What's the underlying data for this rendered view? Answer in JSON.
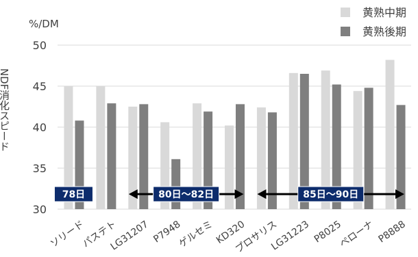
{
  "chart_data": {
    "type": "bar",
    "unit_label": "%/DM",
    "ylabel": "NDF消化スピード",
    "ylim": [
      30,
      50
    ],
    "yticks": [
      30,
      35,
      40,
      45,
      50
    ],
    "grid": true,
    "legend_position": "top-right",
    "categories": [
      "ソリード",
      "パステト",
      "LG31207",
      "P7948",
      "ゲルセミ",
      "KD320",
      "プロサリス",
      "LG31223",
      "P8025",
      "ペローナ",
      "P8888"
    ],
    "series": [
      {
        "name": "黄熟中期",
        "color": "#d9d9d9",
        "values": [
          45.0,
          45.0,
          42.5,
          40.6,
          42.9,
          40.2,
          42.4,
          46.6,
          46.9,
          44.4,
          48.2
        ]
      },
      {
        "name": "黄熟後期",
        "color": "#7f7f7f",
        "values": [
          40.8,
          42.9,
          42.8,
          36.1,
          41.9,
          42.8,
          41.8,
          46.5,
          45.2,
          44.8,
          42.7
        ]
      }
    ],
    "annotations": [
      {
        "label": "78日",
        "start_category": 0,
        "end_category": 0,
        "arrows": false
      },
      {
        "label": "80日～82日",
        "start_category": 2,
        "end_category": 5,
        "arrows": true
      },
      {
        "label": "85日～90日",
        "start_category": 6,
        "end_category": 10,
        "arrows": true
      }
    ],
    "badge_color": "#0d2c6c"
  }
}
